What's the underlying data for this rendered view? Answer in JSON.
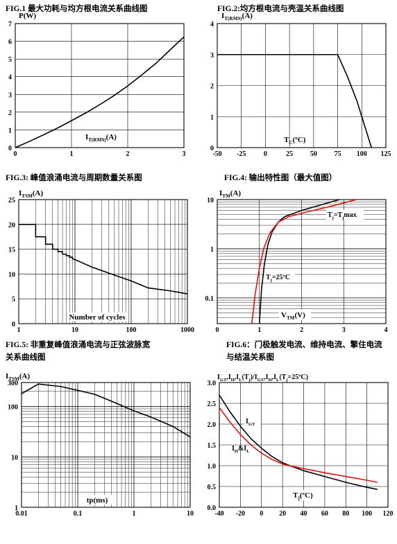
{
  "chart_data": [
    {
      "id": "fig1",
      "title": "FIG.1  最大功耗与均方根电流关系曲线图",
      "type": "line",
      "ylabel_main": "P(W)",
      "xlabel_main": "I",
      "xlabel_sub": "T(RMS)",
      "xlabel_tail": "(A)",
      "xlim": [
        0,
        3
      ],
      "ylim": [
        0,
        7
      ],
      "xticks": [
        0,
        1,
        2,
        3
      ],
      "yticks": [
        0,
        1,
        2,
        3,
        4,
        5,
        6,
        7
      ],
      "series": [
        {
          "color": "#000000",
          "x": [
            0,
            0.25,
            0.5,
            0.75,
            1,
            1.25,
            1.5,
            1.75,
            2,
            2.25,
            2.5,
            2.75,
            3
          ],
          "y": [
            0,
            0.35,
            0.72,
            1.1,
            1.52,
            1.95,
            2.42,
            2.92,
            3.48,
            4.1,
            4.75,
            5.5,
            6.25
          ]
        }
      ]
    },
    {
      "id": "fig2",
      "title": "FIG.2:均方根电流与壳温关系曲线图",
      "type": "line",
      "ylabel_main": "I",
      "ylabel_sub": "T(RMS)",
      "ylabel_tail": "(A)",
      "xlabel_main": "T",
      "xlabel_sub": "C",
      "xlabel_tail": "(ºC)",
      "xlim": [
        -50,
        125
      ],
      "ylim": [
        0,
        4
      ],
      "xticks": [
        -50,
        -25,
        0,
        25,
        50,
        75,
        100,
        125
      ],
      "yticks": [
        0,
        1,
        2,
        3,
        4
      ],
      "series": [
        {
          "color": "#000000",
          "x": [
            -50,
            75,
            85,
            95,
            110
          ],
          "y": [
            3,
            3,
            2.3,
            1.5,
            0
          ]
        }
      ]
    },
    {
      "id": "fig3",
      "title": "FIG.3:  峰值浪涌电流与周期数量关系图",
      "type": "line",
      "ylabel_main": "I",
      "ylabel_sub": "TSM",
      "ylabel_tail": "(A)",
      "xlabel_main": "Number of cycles",
      "xscale": "log",
      "xlim": [
        1,
        1000
      ],
      "ylim": [
        0,
        25
      ],
      "xticks": [
        1,
        10,
        100,
        1000
      ],
      "yticks": [
        0,
        5,
        10,
        15,
        20,
        25
      ],
      "series": [
        {
          "color": "#000000",
          "x": [
            1,
            2,
            2,
            3,
            3,
            4,
            4,
            5,
            5,
            6,
            6,
            7,
            7,
            8,
            8,
            9,
            9,
            10,
            20,
            50,
            100,
            200,
            500,
            1000
          ],
          "y": [
            20,
            20,
            17.5,
            17.5,
            16,
            16,
            15,
            15,
            14.5,
            14.5,
            14,
            14,
            13.7,
            13.7,
            13.4,
            13.4,
            13.1,
            12.9,
            11.4,
            9.8,
            8.6,
            7.2,
            6.6,
            6.0
          ]
        }
      ]
    },
    {
      "id": "fig4",
      "title": "FIG.4:  输出特性图（最大值图）",
      "type": "line",
      "ylabel_main": "I",
      "ylabel_sub": "TM",
      "ylabel_tail": "(A)",
      "xlabel_main": "V",
      "xlabel_sub": "TM",
      "xlabel_tail": "(V)",
      "yscale": "log",
      "xlim": [
        0,
        4
      ],
      "ylim": [
        0.03,
        10
      ],
      "xticks": [
        0,
        1,
        2,
        3,
        4
      ],
      "ytick_labels": [
        {
          "v": 10,
          "t": "10"
        },
        {
          "v": 1,
          "t": "1"
        },
        {
          "v": 0.1,
          "t": "0.1"
        }
      ],
      "annotations": [
        {
          "text_main": "T",
          "text_sub": "j",
          "text_tail": "=25ºC"
        },
        {
          "text_main": "T",
          "text_sub": "j",
          "text_tail": "=T",
          "text_sub2": "j",
          "text_tail2": "max"
        }
      ],
      "series": [
        {
          "name": "Tj=25ºC",
          "color": "#000000",
          "x": [
            1.0,
            1.05,
            1.12,
            1.2,
            1.3,
            1.45,
            1.6,
            2.0,
            2.5,
            2.9
          ],
          "y": [
            0.03,
            0.15,
            0.5,
            1.2,
            2.2,
            3.5,
            4.5,
            6.0,
            8.0,
            10
          ]
        },
        {
          "name": "Tj=Tjmax",
          "color": "#e01010",
          "x": [
            0.82,
            0.9,
            1.0,
            1.1,
            1.25,
            1.45,
            1.7,
            2.2,
            2.7,
            3.3
          ],
          "y": [
            0.03,
            0.12,
            0.4,
            1.0,
            2.1,
            3.5,
            4.5,
            5.8,
            7.3,
            10
          ]
        }
      ]
    },
    {
      "id": "fig5",
      "title": "FIG.5:  非重复峰值浪涌电流与正弦波脉宽\n关系曲线图",
      "type": "line",
      "ylabel_main": "I",
      "ylabel_sub": "TSM",
      "ylabel_tail": "(A)",
      "xlabel_main": "tp(ms)",
      "xscale": "log",
      "yscale": "log",
      "xlim": [
        0.01,
        10
      ],
      "ylim": [
        1,
        300
      ],
      "xtick_labels": [
        {
          "v": 0.01,
          "t": "0.01"
        },
        {
          "v": 0.1,
          "t": "0.1"
        },
        {
          "v": 1,
          "t": "1"
        },
        {
          "v": 10,
          "t": "10"
        }
      ],
      "ytick_labels": [
        {
          "v": 300,
          "t": "300"
        },
        {
          "v": 100,
          "t": "100"
        },
        {
          "v": 10,
          "t": "10"
        },
        {
          "v": 1,
          "t": "1"
        }
      ],
      "series": [
        {
          "color": "#000000",
          "x": [
            0.01,
            0.02,
            0.05,
            0.1,
            0.2,
            0.5,
            1,
            2,
            5,
            10
          ],
          "y": [
            180,
            280,
            250,
            210,
            175,
            115,
            82,
            62,
            40,
            25
          ]
        }
      ]
    },
    {
      "id": "fig6",
      "title": "FIG.6：门极触发电流、维持电流、擎住电流\n与结温关系图",
      "type": "line",
      "header_text": "I",
      "xlabel_main": "T",
      "xlabel_sub": "j",
      "xlabel_tail": "(ºC)",
      "xlim": [
        -40,
        120
      ],
      "ylim": [
        0,
        3.0
      ],
      "xticks": [
        -40,
        -20,
        0,
        20,
        40,
        60,
        80,
        100,
        120
      ],
      "ytick_labels": [
        {
          "v": 0,
          "t": "0.0"
        },
        {
          "v": 0.5,
          "t": "0.5"
        },
        {
          "v": 1.0,
          "t": "1.0"
        },
        {
          "v": 1.5,
          "t": "1.5"
        },
        {
          "v": 2.0,
          "t": "2.0"
        },
        {
          "v": 2.5,
          "t": "2.5"
        },
        {
          "v": 3.0,
          "t": "3.0"
        }
      ],
      "labels": {
        "igt_main": "I",
        "igt_sub": "GT",
        "ih_main": "I",
        "ih_sub": "H",
        "ih_mid": "&I",
        "ih_sub2": "L"
      },
      "series": [
        {
          "name": "IGT",
          "color": "#000000",
          "x": [
            -40,
            -30,
            -20,
            -10,
            0,
            10,
            20,
            30,
            40,
            60,
            80,
            100,
            110
          ],
          "y": [
            2.7,
            2.3,
            1.95,
            1.65,
            1.42,
            1.22,
            1.07,
            0.97,
            0.88,
            0.74,
            0.6,
            0.48,
            0.43
          ]
        },
        {
          "name": "IH&IL",
          "color": "#e01010",
          "x": [
            -40,
            -30,
            -20,
            -10,
            0,
            10,
            20,
            30,
            40,
            60,
            80,
            100,
            110
          ],
          "y": [
            2.4,
            2.05,
            1.75,
            1.5,
            1.3,
            1.15,
            1.04,
            0.98,
            0.93,
            0.83,
            0.74,
            0.65,
            0.6
          ]
        }
      ]
    }
  ]
}
